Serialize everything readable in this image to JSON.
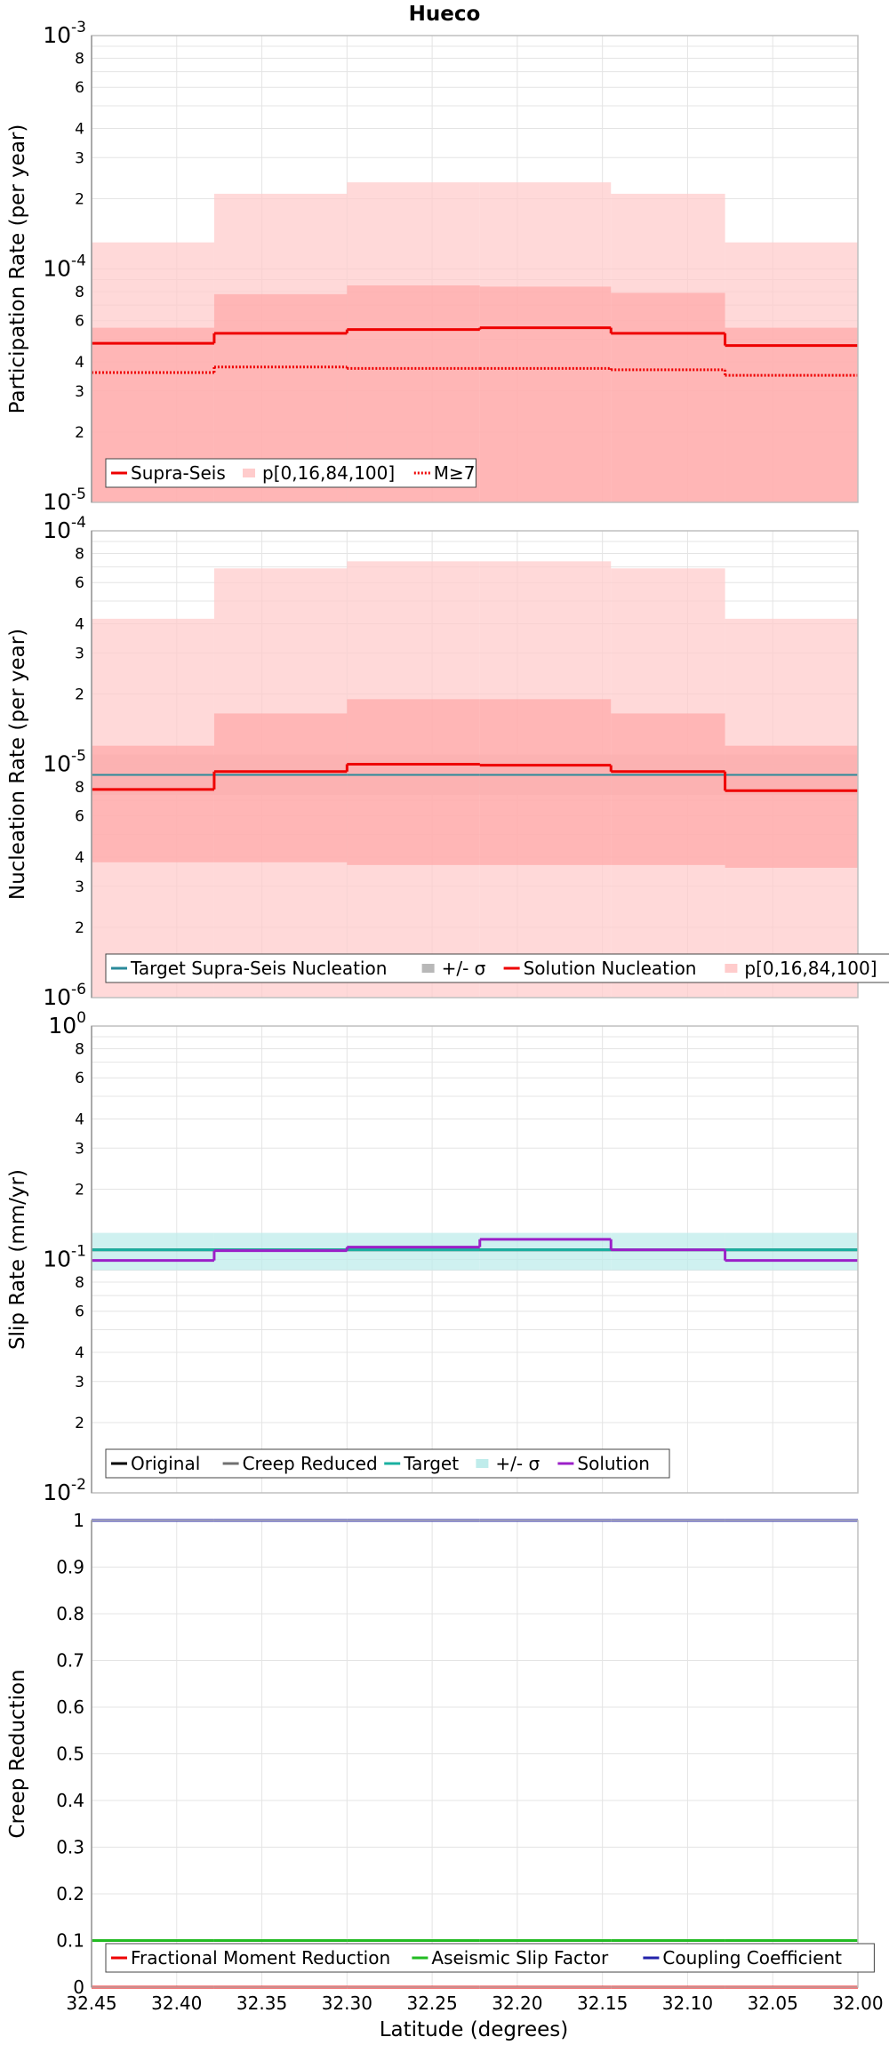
{
  "title": "Hueco",
  "xaxis": {
    "label": "Latitude (degrees)",
    "lim": [
      32.45,
      32.0
    ],
    "reversed": true,
    "ticks": [
      32.45,
      32.4,
      32.35,
      32.3,
      32.25,
      32.2,
      32.15,
      32.1,
      32.05,
      32.0
    ],
    "tick_labels": [
      "32.45",
      "32.40",
      "32.35",
      "32.30",
      "32.25",
      "32.20",
      "32.15",
      "32.10",
      "32.05",
      "32.00"
    ]
  },
  "chart_data": [
    {
      "type": "line",
      "ylabel": "Participation Rate (per year)",
      "yscale": "log",
      "ylim": [
        1e-05,
        0.001
      ],
      "decade_labels": [
        {
          "base": "10",
          "exp": "-5"
        },
        {
          "base": "10",
          "exp": "-4"
        },
        {
          "base": "10",
          "exp": "-3"
        }
      ],
      "legend_position": "bottom-left",
      "grid": true,
      "x_edges": [
        32.45,
        32.378,
        32.3,
        32.222,
        32.145,
        32.078,
        32.0
      ],
      "series": [
        {
          "name": "Supra-Seis",
          "kind": "step",
          "color": "#ee0000",
          "style": "solid",
          "values": [
            4.8e-05,
            5.3e-05,
            5.5e-05,
            5.6e-05,
            5.3e-05,
            4.7e-05
          ]
        },
        {
          "name": "p[0,16,84,100]",
          "kind": "band",
          "color": "#ffcccc",
          "lower": [
            1e-05,
            1e-05,
            1e-05,
            1e-05,
            1e-05,
            1e-05
          ],
          "upper": [
            0.00013,
            0.00021,
            0.000235,
            0.000235,
            0.00021,
            0.00013
          ]
        },
        {
          "name": "",
          "kind": "band",
          "color": "#ffaaaa",
          "lower": [
            1e-05,
            1e-05,
            1e-05,
            1e-05,
            1e-05,
            1e-05
          ],
          "upper": [
            5.6e-05,
            7.8e-05,
            8.5e-05,
            8.4e-05,
            7.9e-05,
            5.6e-05
          ]
        },
        {
          "name": "M≥7",
          "kind": "step",
          "color": "#ee0000",
          "style": "dotted",
          "values": [
            3.6e-05,
            3.8e-05,
            3.75e-05,
            3.75e-05,
            3.7e-05,
            3.5e-05
          ]
        }
      ]
    },
    {
      "type": "line",
      "ylabel": "Nucleation Rate (per year)",
      "yscale": "log",
      "ylim": [
        1e-06,
        0.0001
      ],
      "decade_labels": [
        {
          "base": "10",
          "exp": "-6"
        },
        {
          "base": "10",
          "exp": "-5"
        },
        {
          "base": "10",
          "exp": "-4"
        }
      ],
      "legend_position": "bottom-left",
      "grid": true,
      "x_edges": [
        32.45,
        32.378,
        32.3,
        32.222,
        32.145,
        32.078,
        32.0
      ],
      "series": [
        {
          "name": "Target Supra-Seis Nucleation",
          "kind": "line",
          "color": "#2a8a9a",
          "values": [
            9e-06,
            9e-06,
            9e-06,
            9e-06,
            9e-06,
            9e-06
          ]
        },
        {
          "name": "+/- σ",
          "kind": "band",
          "color": "#b8b8b8",
          "lower": [
            7.4e-06,
            7.4e-06,
            7.4e-06,
            7.4e-06,
            7.4e-06,
            7.4e-06
          ],
          "upper": [
            1.1e-05,
            1.1e-05,
            1.1e-05,
            1.1e-05,
            1.1e-05,
            1.1e-05
          ]
        },
        {
          "name": "Solution Nucleation",
          "kind": "step",
          "color": "#ee0000",
          "values": [
            7.8e-06,
            9.3e-06,
            1e-05,
            9.9e-06,
            9.3e-06,
            7.7e-06
          ]
        },
        {
          "name": "p[0,16,84,100]",
          "kind": "band",
          "color": "#ffcccc",
          "lower": [
            1e-06,
            1e-06,
            1e-06,
            1e-06,
            1e-06,
            1e-06
          ],
          "upper": [
            4.2e-05,
            6.9e-05,
            7.4e-05,
            7.4e-05,
            6.9e-05,
            4.2e-05
          ]
        },
        {
          "name": "",
          "kind": "band",
          "color": "#ffaaaa",
          "lower": [
            3.8e-06,
            3.8e-06,
            3.7e-06,
            3.7e-06,
            3.7e-06,
            3.6e-06
          ],
          "upper": [
            1.2e-05,
            1.65e-05,
            1.9e-05,
            1.9e-05,
            1.65e-05,
            1.2e-05
          ]
        }
      ]
    },
    {
      "type": "line",
      "ylabel": "Slip Rate (mm/yr)",
      "yscale": "log",
      "ylim": [
        0.01,
        1
      ],
      "decade_labels": [
        {
          "base": "10",
          "exp": "-2"
        },
        {
          "base": "10",
          "exp": "-1"
        },
        {
          "base": "10",
          "exp": "0"
        }
      ],
      "legend_position": "bottom-left",
      "grid": true,
      "x_edges": [
        32.45,
        32.378,
        32.3,
        32.222,
        32.145,
        32.078,
        32.0
      ],
      "series": [
        {
          "name": "Original",
          "kind": "step",
          "color": "#000000",
          "values": [
            0.11,
            0.11,
            0.11,
            0.11,
            0.11,
            0.11
          ]
        },
        {
          "name": "Creep Reduced",
          "kind": "step",
          "color": "#707070",
          "values": [
            0.11,
            0.11,
            0.11,
            0.11,
            0.11,
            0.11
          ]
        },
        {
          "name": "Target",
          "kind": "step",
          "color": "#1ab0a0",
          "values": [
            0.11,
            0.11,
            0.11,
            0.11,
            0.11,
            0.11
          ]
        },
        {
          "name": "+/- σ",
          "kind": "band",
          "color": "#bfeceb",
          "lower": [
            0.09,
            0.09,
            0.09,
            0.09,
            0.09,
            0.09
          ],
          "upper": [
            0.13,
            0.13,
            0.13,
            0.13,
            0.13,
            0.13
          ]
        },
        {
          "name": "Solution",
          "kind": "step",
          "color": "#9b20c8",
          "values": [
            0.099,
            0.109,
            0.113,
            0.122,
            0.11,
            0.099
          ]
        }
      ]
    },
    {
      "type": "line",
      "ylabel": "Creep Reduction",
      "yscale": "linear",
      "ylim": [
        0,
        1
      ],
      "yticks": [
        0,
        0.1,
        0.2,
        0.3,
        0.4,
        0.5,
        0.6,
        0.7,
        0.8,
        0.9,
        1
      ],
      "ytick_labels": [
        "0",
        "0.1",
        "0.2",
        "0.3",
        "0.4",
        "0.5",
        "0.6",
        "0.7",
        "0.8",
        "0.9",
        "1"
      ],
      "legend_position": "bottom-left",
      "grid": true,
      "x_edges": [
        32.45,
        32.378,
        32.3,
        32.222,
        32.145,
        32.078,
        32.0
      ],
      "series": [
        {
          "name": "Fractional Moment Reduction",
          "kind": "step",
          "color": "#ee0000",
          "values": [
            0,
            0,
            0,
            0,
            0,
            0
          ]
        },
        {
          "name": "Aseismic Slip Factor",
          "kind": "step",
          "color": "#22bb22",
          "values": [
            0.1,
            0.1,
            0.1,
            0.1,
            0.1,
            0.1
          ]
        },
        {
          "name": "Coupling Coefficient",
          "kind": "step",
          "color": "#2222aa",
          "values": [
            1,
            1,
            1,
            1,
            1,
            1
          ]
        }
      ]
    }
  ]
}
